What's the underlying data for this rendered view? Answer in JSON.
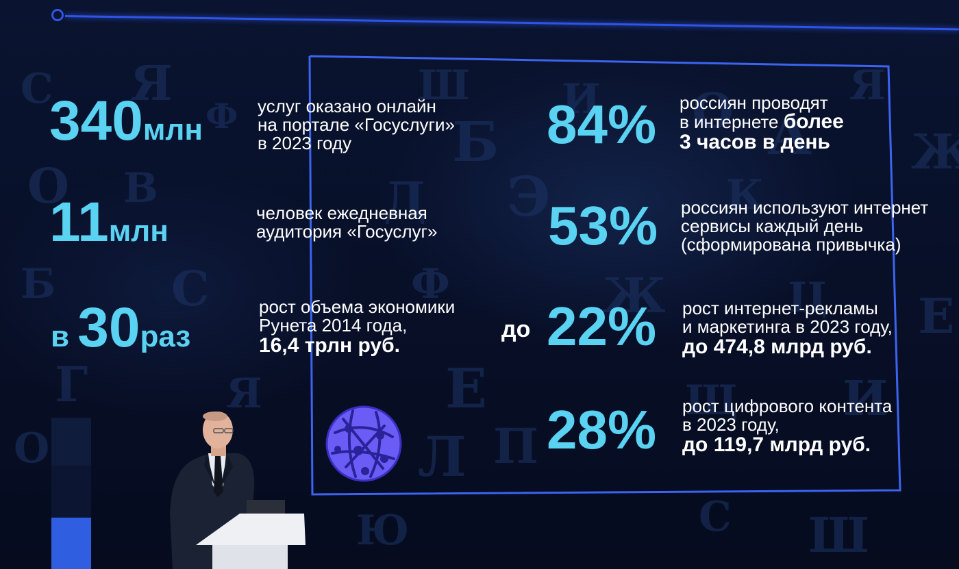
{
  "colors": {
    "accent_cyan": "#5ad2f2",
    "frame_blue": "#2f55e6",
    "text_white": "#ffffff",
    "globe_violet": "#6b5cf5",
    "background": "#060b1e"
  },
  "left_stats": [
    {
      "value": "340",
      "unit": "млн",
      "lines": [
        "услуг оказано онлайн",
        "на портале «Госуслуги»",
        "в 2023 году"
      ]
    },
    {
      "value": "11",
      "unit": "млн",
      "lines": [
        "человек ежедневная",
        "аудитория «Госуслуг»"
      ]
    },
    {
      "prefix": "в ",
      "value": "30",
      "unit": "раз",
      "lines": [
        "рост объема экономики",
        "Рунета 2014 года,"
      ],
      "strong": "16,4 трлн руб."
    }
  ],
  "right_stats": [
    {
      "value": "84%",
      "lines": [
        "россиян проводят"
      ],
      "mixed_prefix": "в интернете ",
      "mixed_strong": "более",
      "strong": "3 часов в день"
    },
    {
      "value": "53%",
      "lines": [
        "россиян используют интернет",
        "сервисы каждый день",
        "(сформирована привычка)"
      ]
    },
    {
      "prefix": "до",
      "value": "22%",
      "lines": [
        "рост интернет-рекламы",
        "и маркетинга в 2023 году,"
      ],
      "strong": "до 474,8 млрд руб."
    },
    {
      "value": "28%",
      "lines": [
        "рост цифрового контента",
        "в 2023 году,"
      ],
      "strong": "до 119,7 млрд руб."
    }
  ],
  "icons": {
    "globe": "network-globe-icon"
  }
}
